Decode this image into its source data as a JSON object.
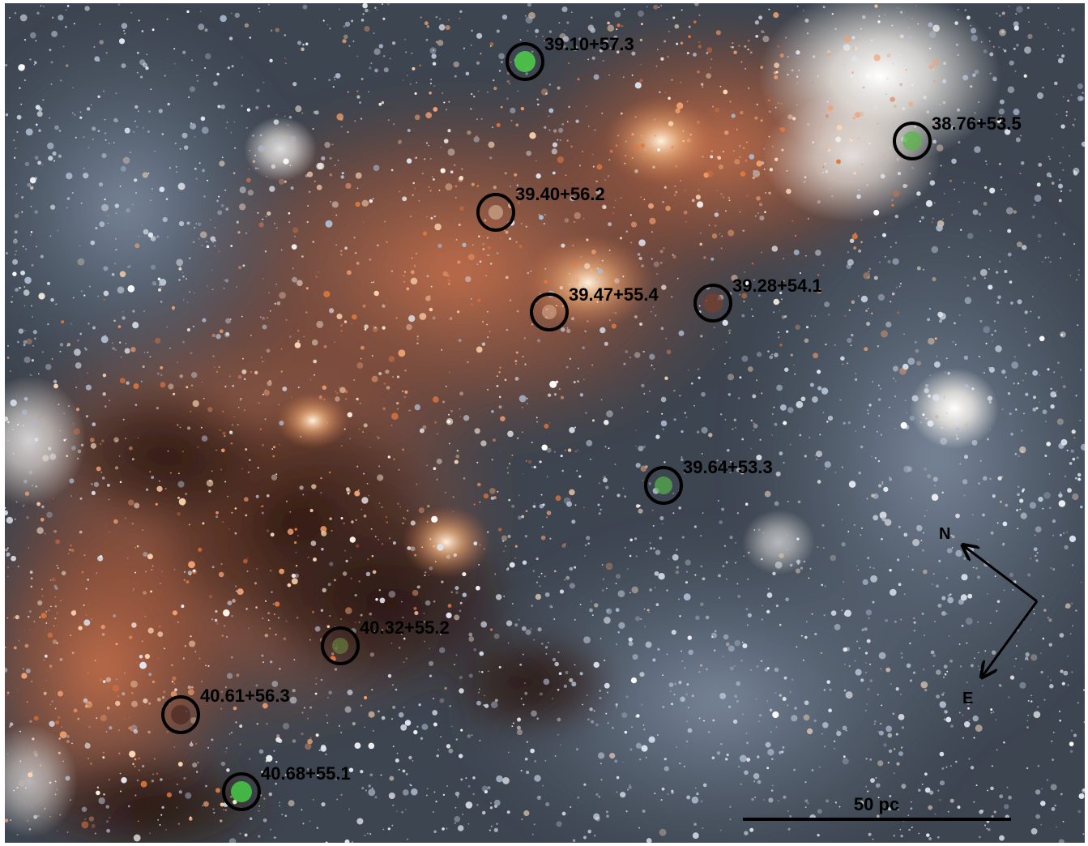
{
  "sources": [
    {
      "label": "39.10+57.3",
      "core_color": "#4fd048"
    },
    {
      "label": "38.76+53.5",
      "core_color": "#59b64a"
    },
    {
      "label": "39.40+56.2",
      "core_color": "#d9b79a"
    },
    {
      "label": "39.47+55.4",
      "core_color": "#d8a890"
    },
    {
      "label": "39.28+54.1",
      "core_color": "#7a3e2e"
    },
    {
      "label": "39.64+53.3",
      "core_color": "#54b44c"
    },
    {
      "label": "40.32+55.2",
      "core_color": "#6c8a3f"
    },
    {
      "label": "40.61+56.3",
      "core_color": "#4a2a22"
    },
    {
      "label": "40.68+55.1",
      "core_color": "#46cb45"
    }
  ],
  "compass": {
    "north": "N",
    "east": "E"
  },
  "scale_bar": {
    "label": "50 pc"
  },
  "colors": {
    "marker": "#000000",
    "dust_lane": "#2a1712",
    "warm_region": "#b5643d",
    "cool_region": "#6f7f94",
    "background": "#3c4450"
  }
}
